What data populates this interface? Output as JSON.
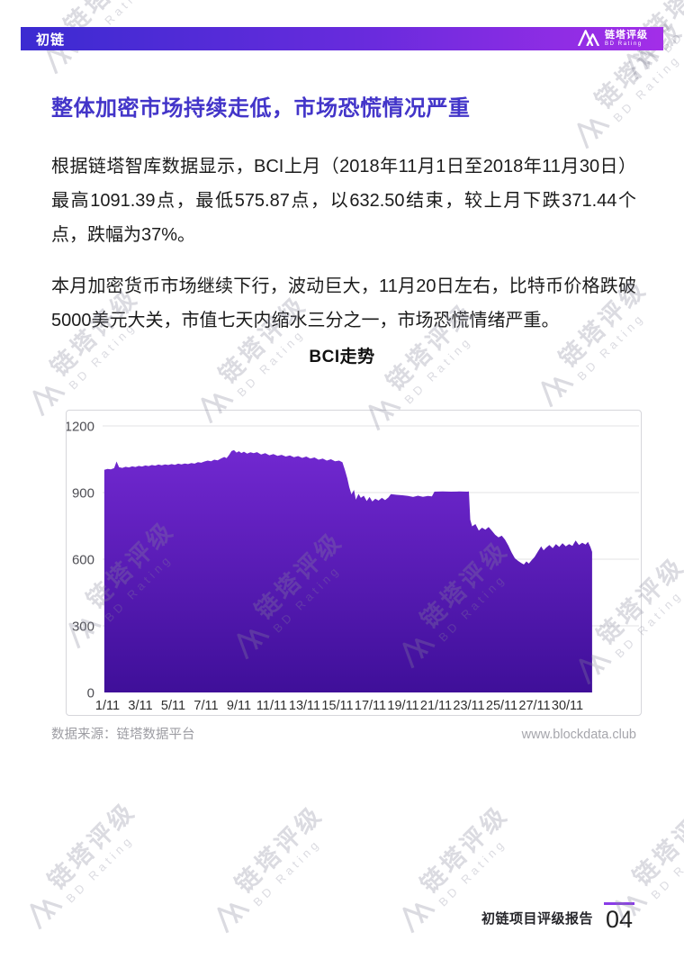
{
  "header": {
    "product": "初链",
    "brand_cn": "链塔评级",
    "brand_en": "BD Rating"
  },
  "title": "整体加密市场持续走低，市场恐慌情况严重",
  "paragraphs": {
    "p1": "根据链塔智库数据显示，BCI上月（2018年11月1日至2018年11月30日）最高1091.39点，最低575.87点，以632.50结束，较上月下跌371.44个点，跌幅为37%。",
    "p2": "本月加密货币市场继续下行，波动巨大，11月20日左右，比特币价格跌破5000美元大关，市值七天内缩水三分之一，市场恐慌情绪严重。"
  },
  "source_note": "数据来源：链塔数据平台",
  "website": "www.blockdata.club",
  "footer": {
    "report_title": "初链项目评级报告",
    "page_number": "04"
  },
  "watermark": {
    "text_cn": "链塔评级",
    "text_en": "BD Rating"
  },
  "colors": {
    "header_gradient_left": "#3b2bd1",
    "header_gradient_right": "#a32ee8",
    "title_text": "#4335c9",
    "area_top": "#7128d0",
    "area_bottom": "#3f0f99",
    "gridline": "#e3e3e6",
    "accent_rule": "#8a3ce8"
  },
  "chart_data": {
    "type": "area",
    "title": "BCI走势",
    "xlabel": "",
    "ylabel": "",
    "ylim": [
      0,
      1200
    ],
    "y_ticks": [
      0,
      300,
      600,
      900,
      1200
    ],
    "x_tick_labels": [
      "1/11",
      "3/11",
      "5/11",
      "7/11",
      "9/11",
      "11/11",
      "13/11",
      "15/11",
      "17/11",
      "19/11",
      "21/11",
      "23/11",
      "25/11",
      "27/11",
      "30/11"
    ],
    "grid": "horizontal",
    "legend": "none",
    "series": [
      {
        "name": "BCI",
        "x_unit": "day of November 2018 (fractional = intraday)",
        "points": [
          [
            0.8,
            1002
          ],
          [
            1.0,
            1006
          ],
          [
            1.2,
            1004
          ],
          [
            1.4,
            1010
          ],
          [
            1.55,
            1040
          ],
          [
            1.7,
            1014
          ],
          [
            1.9,
            1011
          ],
          [
            2.1,
            1016
          ],
          [
            2.3,
            1013
          ],
          [
            2.5,
            1018
          ],
          [
            2.7,
            1015
          ],
          [
            2.9,
            1020
          ],
          [
            3.1,
            1017
          ],
          [
            3.3,
            1022
          ],
          [
            3.5,
            1019
          ],
          [
            3.7,
            1024
          ],
          [
            3.9,
            1021
          ],
          [
            4.1,
            1026
          ],
          [
            4.3,
            1023
          ],
          [
            4.5,
            1027
          ],
          [
            4.7,
            1024
          ],
          [
            4.9,
            1028
          ],
          [
            5.1,
            1025
          ],
          [
            5.3,
            1030
          ],
          [
            5.5,
            1027
          ],
          [
            5.7,
            1031
          ],
          [
            5.9,
            1028
          ],
          [
            6.1,
            1033
          ],
          [
            6.3,
            1030
          ],
          [
            6.5,
            1037
          ],
          [
            6.7,
            1034
          ],
          [
            6.9,
            1040
          ],
          [
            7.1,
            1044
          ],
          [
            7.3,
            1041
          ],
          [
            7.5,
            1048
          ],
          [
            7.7,
            1045
          ],
          [
            7.9,
            1053
          ],
          [
            8.1,
            1060
          ],
          [
            8.25,
            1055
          ],
          [
            8.4,
            1070
          ],
          [
            8.55,
            1087
          ],
          [
            8.7,
            1091
          ],
          [
            8.85,
            1080
          ],
          [
            9.0,
            1086
          ],
          [
            9.15,
            1078
          ],
          [
            9.3,
            1084
          ],
          [
            9.5,
            1075
          ],
          [
            9.7,
            1081
          ],
          [
            9.9,
            1077
          ],
          [
            10.1,
            1082
          ],
          [
            10.35,
            1071
          ],
          [
            10.6,
            1077
          ],
          [
            10.85,
            1068
          ],
          [
            11.1,
            1073
          ],
          [
            11.35,
            1065
          ],
          [
            11.6,
            1070
          ],
          [
            11.85,
            1062
          ],
          [
            12.1,
            1067
          ],
          [
            12.35,
            1059
          ],
          [
            12.6,
            1064
          ],
          [
            12.85,
            1056
          ],
          [
            13.1,
            1062
          ],
          [
            13.35,
            1053
          ],
          [
            13.6,
            1058
          ],
          [
            13.85,
            1048
          ],
          [
            14.1,
            1053
          ],
          [
            14.35,
            1044
          ],
          [
            14.6,
            1050
          ],
          [
            14.85,
            1041
          ],
          [
            15.1,
            1044
          ],
          [
            15.3,
            1036
          ],
          [
            15.45,
            1002
          ],
          [
            15.6,
            964
          ],
          [
            15.72,
            924
          ],
          [
            15.85,
            892
          ],
          [
            16.0,
            912
          ],
          [
            16.12,
            868
          ],
          [
            16.28,
            894
          ],
          [
            16.42,
            876
          ],
          [
            16.6,
            886
          ],
          [
            16.78,
            862
          ],
          [
            16.95,
            880
          ],
          [
            17.12,
            860
          ],
          [
            17.3,
            872
          ],
          [
            17.5,
            864
          ],
          [
            17.7,
            876
          ],
          [
            17.9,
            866
          ],
          [
            18.1,
            878
          ],
          [
            18.25,
            893
          ],
          [
            18.6,
            890
          ],
          [
            18.95,
            888
          ],
          [
            19.3,
            885
          ],
          [
            19.6,
            880
          ],
          [
            19.9,
            886
          ],
          [
            20.2,
            881
          ],
          [
            20.5,
            885
          ],
          [
            20.75,
            883
          ],
          [
            20.9,
            904
          ],
          [
            21.4,
            905
          ],
          [
            21.9,
            904
          ],
          [
            22.4,
            905
          ],
          [
            22.9,
            904
          ],
          [
            23.0,
            905
          ],
          [
            23.08,
            778
          ],
          [
            23.2,
            748
          ],
          [
            23.4,
            758
          ],
          [
            23.6,
            729
          ],
          [
            23.8,
            742
          ],
          [
            24.0,
            733
          ],
          [
            24.2,
            745
          ],
          [
            24.4,
            728
          ],
          [
            24.6,
            710
          ],
          [
            24.8,
            698
          ],
          [
            25.0,
            706
          ],
          [
            25.2,
            688
          ],
          [
            25.4,
            662
          ],
          [
            25.6,
            630
          ],
          [
            25.8,
            604
          ],
          [
            26.0,
            592
          ],
          [
            26.2,
            582
          ],
          [
            26.35,
            576
          ],
          [
            26.5,
            590
          ],
          [
            26.65,
            580
          ],
          [
            26.8,
            594
          ],
          [
            27.0,
            610
          ],
          [
            27.2,
            634
          ],
          [
            27.4,
            658
          ],
          [
            27.55,
            640
          ],
          [
            27.7,
            652
          ],
          [
            27.9,
            664
          ],
          [
            28.1,
            650
          ],
          [
            28.3,
            668
          ],
          [
            28.5,
            655
          ],
          [
            28.7,
            672
          ],
          [
            28.9,
            658
          ],
          [
            29.1,
            668
          ],
          [
            29.3,
            660
          ],
          [
            29.5,
            684
          ],
          [
            29.7,
            664
          ],
          [
            29.9,
            674
          ],
          [
            30.1,
            666
          ],
          [
            30.25,
            678
          ],
          [
            30.4,
            655
          ],
          [
            30.5,
            633
          ]
        ]
      }
    ]
  }
}
